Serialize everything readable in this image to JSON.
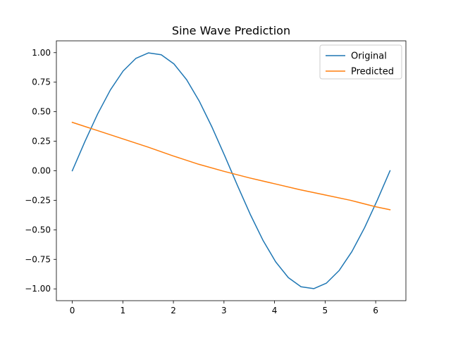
{
  "chart_data": {
    "type": "line",
    "title": "Sine Wave Prediction",
    "xlabel": "",
    "ylabel": "",
    "xlim": [
      -0.3142,
      6.5974
    ],
    "ylim": [
      -1.1,
      1.1
    ],
    "xticks": [
      0,
      1,
      2,
      3,
      4,
      5,
      6
    ],
    "yticks": [
      -1.0,
      -0.75,
      -0.5,
      -0.25,
      0.0,
      0.25,
      0.5,
      0.75,
      1.0
    ],
    "xtick_labels": [
      "0",
      "1",
      "2",
      "3",
      "4",
      "5",
      "6"
    ],
    "ytick_labels": [
      "−1.00",
      "−0.75",
      "−0.50",
      "−0.25",
      "0.00",
      "0.25",
      "0.50",
      "0.75",
      "1.00"
    ],
    "grid": false,
    "legend": "top-right",
    "series": [
      {
        "name": "Original",
        "color": "#1f77b4",
        "x": [
          0,
          0.2513,
          0.5027,
          0.754,
          1.0053,
          1.2566,
          1.508,
          1.7593,
          2.0106,
          2.2619,
          2.5133,
          2.7646,
          3.0159,
          3.2673,
          3.5186,
          3.7699,
          4.0212,
          4.2726,
          4.5239,
          4.7752,
          5.0265,
          5.2779,
          5.5292,
          5.7805,
          6.0319,
          6.2832
        ],
        "y": [
          0,
          0.2487,
          0.4818,
          0.6845,
          0.8443,
          0.9511,
          0.998,
          0.9823,
          0.9048,
          0.7705,
          0.5878,
          0.3681,
          0.1253,
          -0.1253,
          -0.3681,
          -0.5878,
          -0.7705,
          -0.9048,
          -0.9823,
          -0.998,
          -0.9511,
          -0.8443,
          -0.6845,
          -0.4818,
          -0.2487,
          0
        ]
      },
      {
        "name": "Predicted",
        "color": "#ff7f0e",
        "x": [
          0,
          0.5,
          1.0,
          1.5,
          2.0,
          2.5,
          3.0,
          3.5,
          4.0,
          4.5,
          5.0,
          5.5,
          6.0,
          6.2832
        ],
        "y": [
          0.41,
          0.34,
          0.27,
          0.2,
          0.125,
          0.055,
          -0.005,
          -0.06,
          -0.11,
          -0.16,
          -0.205,
          -0.25,
          -0.305,
          -0.33
        ]
      }
    ]
  }
}
